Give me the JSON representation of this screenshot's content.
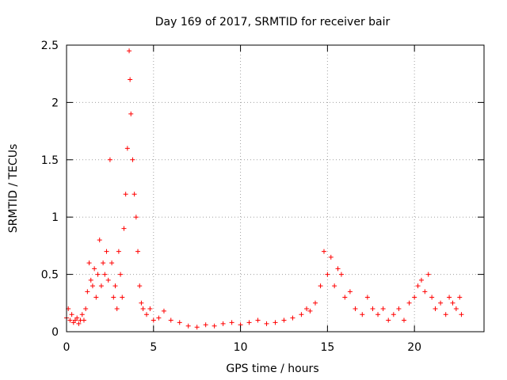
{
  "chart_data": {
    "type": "scatter",
    "title": "Day 169 of 2017, SRMTID for receiver bair",
    "xlabel": "GPS time / hours",
    "ylabel": "SRMTID / TECUs",
    "xlim": [
      0,
      24
    ],
    "ylim": [
      0,
      2.5
    ],
    "x_ticks": [
      "0",
      "5",
      "10",
      "15",
      "20"
    ],
    "x_tick_values": [
      0,
      5,
      10,
      15,
      20
    ],
    "y_ticks": [
      "0",
      "0.5",
      "1",
      "1.5",
      "2",
      "2.5"
    ],
    "y_tick_values": [
      0,
      0.5,
      1,
      1.5,
      2,
      2.5
    ],
    "grid": true,
    "marker": "+",
    "series": [
      {
        "name": "SRMTID",
        "color": "#ff0000",
        "x": [
          0.0,
          0.1,
          0.2,
          0.3,
          0.4,
          0.5,
          0.6,
          0.7,
          0.8,
          0.9,
          1.0,
          1.1,
          1.2,
          1.3,
          1.4,
          1.5,
          1.6,
          1.7,
          1.8,
          1.9,
          2.0,
          2.1,
          2.2,
          2.3,
          2.4,
          2.5,
          2.6,
          2.7,
          2.8,
          2.9,
          3.0,
          3.1,
          3.2,
          3.3,
          3.4,
          3.5,
          3.6,
          3.65,
          3.7,
          3.8,
          3.9,
          4.0,
          4.1,
          4.2,
          4.3,
          4.4,
          4.6,
          4.8,
          5.0,
          5.3,
          5.6,
          6.0,
          6.5,
          7.0,
          7.5,
          8.0,
          8.5,
          9.0,
          9.5,
          10.0,
          10.5,
          11.0,
          11.5,
          12.0,
          12.5,
          13.0,
          13.5,
          13.8,
          14.0,
          14.3,
          14.6,
          14.8,
          15.0,
          15.2,
          15.4,
          15.6,
          15.8,
          16.0,
          16.3,
          16.6,
          17.0,
          17.3,
          17.6,
          17.9,
          18.2,
          18.5,
          18.8,
          19.1,
          19.4,
          19.7,
          20.0,
          20.2,
          20.4,
          20.6,
          20.8,
          21.0,
          21.2,
          21.5,
          21.8,
          22.0,
          22.2,
          22.4,
          22.6,
          22.7
        ],
        "y": [
          0.12,
          0.2,
          0.1,
          0.15,
          0.08,
          0.1,
          0.12,
          0.07,
          0.1,
          0.15,
          0.1,
          0.2,
          0.35,
          0.6,
          0.45,
          0.4,
          0.55,
          0.3,
          0.5,
          0.8,
          0.4,
          0.6,
          0.5,
          0.7,
          0.45,
          1.5,
          0.6,
          0.3,
          0.4,
          0.2,
          0.7,
          0.5,
          0.3,
          0.9,
          1.2,
          1.6,
          2.45,
          2.2,
          1.9,
          1.5,
          1.2,
          1.0,
          0.7,
          0.4,
          0.25,
          0.2,
          0.15,
          0.2,
          0.1,
          0.12,
          0.18,
          0.1,
          0.08,
          0.05,
          0.04,
          0.06,
          0.05,
          0.07,
          0.08,
          0.06,
          0.08,
          0.1,
          0.07,
          0.08,
          0.1,
          0.12,
          0.15,
          0.2,
          0.18,
          0.25,
          0.4,
          0.7,
          0.5,
          0.65,
          0.4,
          0.55,
          0.5,
          0.3,
          0.35,
          0.2,
          0.15,
          0.3,
          0.2,
          0.15,
          0.2,
          0.1,
          0.15,
          0.2,
          0.1,
          0.25,
          0.3,
          0.4,
          0.45,
          0.35,
          0.5,
          0.3,
          0.2,
          0.25,
          0.15,
          0.3,
          0.25,
          0.2,
          0.3,
          0.15
        ]
      }
    ]
  }
}
